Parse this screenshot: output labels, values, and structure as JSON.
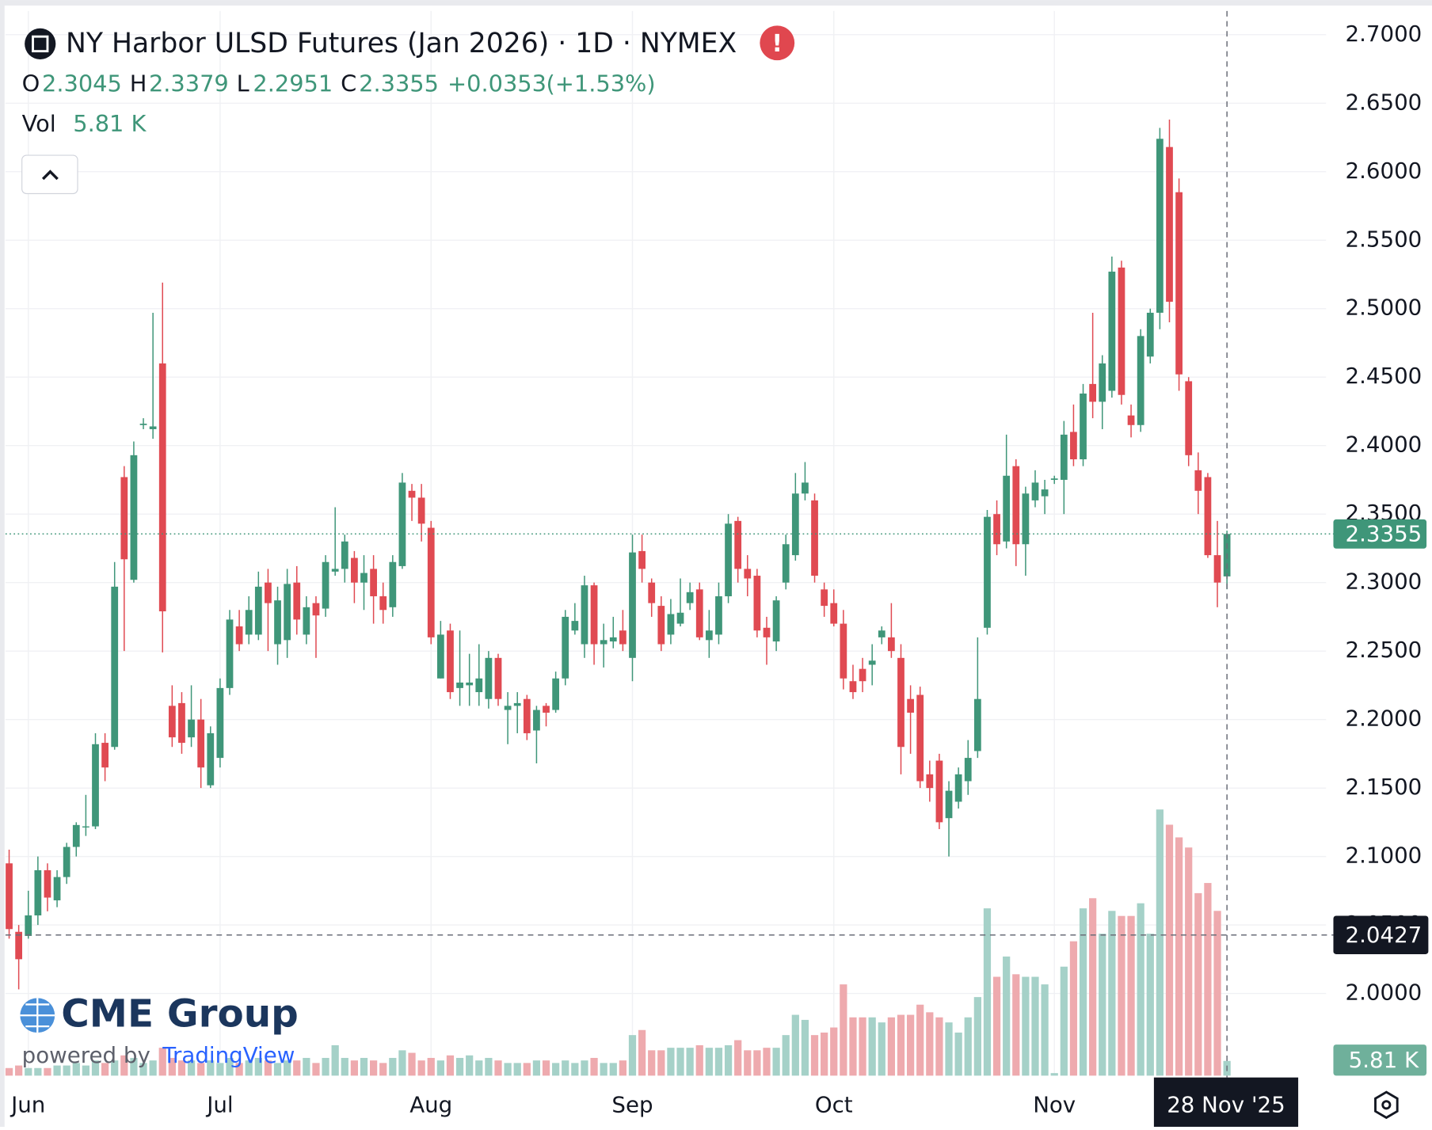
{
  "header": {
    "title": "NY Harbor ULSD Futures (Jan 2026) · 1D · NYMEX",
    "ohlc_labels": [
      "O",
      "H",
      "L",
      "C"
    ],
    "change": "+0.0353",
    "change_pct": "(+1.53%)",
    "vol_label": "Vol",
    "vol_value": "5.81 K"
  },
  "branding": {
    "logo": "CME Group",
    "powered": "powered by",
    "platform": "TradingView"
  },
  "chart_data": {
    "type": "candlestick",
    "open": [
      2.095,
      2.045,
      2.042,
      2.057,
      2.09,
      2.068,
      2.085,
      2.107,
      2.122,
      2.122,
      2.183,
      2.18,
      2.377,
      2.302,
      2.415,
      2.412,
      2.46,
      2.21,
      2.212,
      2.187,
      2.2,
      2.152,
      2.172,
      2.223,
      2.268,
      2.262,
      2.262,
      2.3,
      2.255,
      2.258,
      2.3,
      2.262,
      2.285,
      2.281,
      2.308,
      2.31,
      2.318,
      2.3,
      2.31,
      2.29,
      2.282,
      2.312,
      2.367,
      2.362,
      2.34,
      2.23,
      2.265,
      2.223,
      2.225,
      2.22,
      2.215,
      2.245,
      2.207,
      2.21,
      2.215,
      2.192,
      2.21,
      2.207,
      2.23,
      2.265,
      2.255,
      2.298,
      2.255,
      2.257,
      2.265,
      2.245,
      2.323,
      2.3,
      2.283,
      2.262,
      2.27,
      2.285,
      2.295,
      2.258,
      2.262,
      2.29,
      2.345,
      2.31,
      2.305,
      2.267,
      2.257,
      2.3,
      2.32,
      2.365,
      2.36,
      2.295,
      2.285,
      2.27,
      2.228,
      2.237,
      2.24,
      2.26,
      2.26,
      2.245,
      2.215,
      2.218,
      2.16,
      2.17,
      2.128,
      2.14,
      2.155,
      2.177,
      2.267,
      2.35,
      2.33,
      2.385,
      2.328,
      2.36,
      2.363,
      2.375,
      2.375,
      2.41,
      2.39,
      2.445,
      2.432,
      2.44,
      2.53,
      2.422,
      2.415,
      2.465,
      2.497,
      2.618,
      2.585,
      2.447,
      2.382,
      2.377,
      2.32,
      2.3045
    ],
    "high": [
      2.105,
      2.05,
      2.075,
      2.1,
      2.095,
      2.09,
      2.11,
      2.125,
      2.145,
      2.19,
      2.19,
      2.315,
      2.385,
      2.403,
      2.42,
      2.497,
      2.519,
      2.225,
      2.22,
      2.225,
      2.215,
      2.195,
      2.23,
      2.28,
      2.28,
      2.29,
      2.308,
      2.31,
      2.297,
      2.31,
      2.312,
      2.29,
      2.29,
      2.32,
      2.355,
      2.335,
      2.323,
      2.32,
      2.32,
      2.3,
      2.32,
      2.38,
      2.372,
      2.372,
      2.345,
      2.272,
      2.27,
      2.265,
      2.248,
      2.255,
      2.25,
      2.248,
      2.22,
      2.22,
      2.218,
      2.21,
      2.212,
      2.235,
      2.28,
      2.285,
      2.305,
      2.3,
      2.27,
      2.275,
      2.28,
      2.335,
      2.335,
      2.303,
      2.29,
      2.288,
      2.303,
      2.3,
      2.3,
      2.28,
      2.3,
      2.35,
      2.348,
      2.32,
      2.31,
      2.275,
      2.29,
      2.335,
      2.38,
      2.388,
      2.365,
      2.3,
      2.295,
      2.28,
      2.24,
      2.245,
      2.255,
      2.268,
      2.285,
      2.255,
      2.225,
      2.224,
      2.17,
      2.175,
      2.155,
      2.165,
      2.185,
      2.26,
      2.353,
      2.36,
      2.408,
      2.39,
      2.37,
      2.382,
      2.375,
      2.378,
      2.418,
      2.43,
      2.445,
      2.497,
      2.466,
      2.538,
      2.535,
      2.43,
      2.485,
      2.5,
      2.632,
      2.638,
      2.595,
      2.45,
      2.395,
      2.38,
      2.345,
      2.3379
    ],
    "low": [
      2.04,
      2.003,
      2.04,
      2.05,
      2.06,
      2.063,
      2.08,
      2.1,
      2.115,
      2.12,
      2.155,
      2.178,
      2.25,
      2.3,
      2.412,
      2.405,
      2.249,
      2.18,
      2.175,
      2.18,
      2.15,
      2.15,
      2.165,
      2.218,
      2.25,
      2.255,
      2.258,
      2.25,
      2.24,
      2.245,
      2.262,
      2.255,
      2.245,
      2.275,
      2.305,
      2.3,
      2.285,
      2.28,
      2.27,
      2.27,
      2.275,
      2.31,
      2.345,
      2.33,
      2.255,
      2.23,
      2.215,
      2.21,
      2.21,
      2.21,
      2.208,
      2.21,
      2.182,
      2.19,
      2.185,
      2.168,
      2.195,
      2.205,
      2.225,
      2.262,
      2.245,
      2.24,
      2.238,
      2.252,
      2.25,
      2.228,
      2.3,
      2.275,
      2.25,
      2.255,
      2.268,
      2.28,
      2.258,
      2.245,
      2.255,
      2.285,
      2.3,
      2.29,
      2.26,
      2.24,
      2.25,
      2.295,
      2.316,
      2.36,
      2.3,
      2.275,
      2.268,
      2.222,
      2.215,
      2.22,
      2.225,
      2.255,
      2.245,
      2.16,
      2.175,
      2.15,
      2.14,
      2.12,
      2.1,
      2.135,
      2.145,
      2.172,
      2.262,
      2.32,
      2.325,
      2.312,
      2.305,
      2.355,
      2.35,
      2.372,
      2.35,
      2.385,
      2.385,
      2.42,
      2.412,
      2.435,
      2.43,
      2.406,
      2.41,
      2.46,
      2.485,
      2.49,
      2.44,
      2.385,
      2.35,
      2.318,
      2.282,
      2.2951
    ],
    "close": [
      2.047,
      2.025,
      2.057,
      2.09,
      2.07,
      2.085,
      2.107,
      2.123,
      2.122,
      2.182,
      2.165,
      2.297,
      2.317,
      2.393,
      2.416,
      2.414,
      2.279,
      2.187,
      2.183,
      2.2,
      2.165,
      2.19,
      2.223,
      2.273,
      2.255,
      2.28,
      2.297,
      2.285,
      2.287,
      2.299,
      2.273,
      2.282,
      2.276,
      2.315,
      2.31,
      2.33,
      2.3,
      2.307,
      2.29,
      2.28,
      2.315,
      2.373,
      2.362,
      2.343,
      2.26,
      2.262,
      2.22,
      2.227,
      2.227,
      2.23,
      2.245,
      2.215,
      2.21,
      2.212,
      2.19,
      2.207,
      2.205,
      2.23,
      2.275,
      2.272,
      2.298,
      2.255,
      2.258,
      2.26,
      2.255,
      2.322,
      2.31,
      2.285,
      2.255,
      2.277,
      2.278,
      2.293,
      2.26,
      2.265,
      2.29,
      2.343,
      2.31,
      2.303,
      2.265,
      2.26,
      2.287,
      2.328,
      2.365,
      2.373,
      2.305,
      2.283,
      2.27,
      2.23,
      2.22,
      2.228,
      2.243,
      2.265,
      2.25,
      2.18,
      2.205,
      2.155,
      2.15,
      2.125,
      2.148,
      2.16,
      2.172,
      2.215,
      2.348,
      2.328,
      2.378,
      2.328,
      2.365,
      2.373,
      2.368,
      2.376,
      2.408,
      2.39,
      2.438,
      2.432,
      2.46,
      2.527,
      2.437,
      2.415,
      2.48,
      2.497,
      2.624,
      2.505,
      2.452,
      2.393,
      2.367,
      2.32,
      2.3,
      2.3355
    ],
    "volume": [
      3,
      4,
      3,
      3,
      3,
      4,
      4,
      5,
      4,
      6,
      5,
      6,
      8,
      7,
      5,
      6,
      11,
      7,
      6,
      6,
      5,
      6,
      5,
      7,
      5,
      6,
      7,
      6,
      5,
      6,
      6,
      7,
      5,
      7,
      12,
      7,
      6,
      7,
      6,
      5,
      7,
      10,
      9,
      6,
      7,
      6,
      8,
      7,
      8,
      6,
      7,
      6,
      5,
      5,
      5,
      6,
      6,
      5,
      6,
      5,
      6,
      7,
      5,
      5,
      6,
      16,
      18,
      10,
      10,
      11,
      11,
      11,
      12,
      11,
      11,
      12,
      14,
      10,
      10,
      11,
      11,
      16,
      24,
      22,
      16,
      17,
      19,
      36,
      23,
      23,
      23,
      21,
      23,
      24,
      24,
      28,
      25,
      23,
      21,
      17,
      23,
      31,
      66,
      39,
      47,
      40,
      39,
      39,
      36,
      1,
      43,
      53,
      66,
      70,
      56,
      65,
      63,
      63,
      68,
      56,
      105,
      99,
      94,
      90,
      72,
      76,
      65,
      5.81
    ],
    "up_color": "#3f9679",
    "down_color": "#e04a52",
    "up_volume_color": "#a5d1c8",
    "down_volume_color": "#eeaaae",
    "ylim": [
      1.94,
      2.7173
    ],
    "volume_ylim": [
      0,
      420
    ],
    "yticks": [
      {
        "value": 2.0,
        "label": "2.0000"
      },
      {
        "value": 2.05,
        "label": "2.0500"
      },
      {
        "value": 2.1,
        "label": "2.1000"
      },
      {
        "value": 2.15,
        "label": "2.1500"
      },
      {
        "value": 2.2,
        "label": "2.2000"
      },
      {
        "value": 2.25,
        "label": "2.2500"
      },
      {
        "value": 2.3,
        "label": "2.3000"
      },
      {
        "value": 2.35,
        "label": "2.3500"
      },
      {
        "value": 2.4,
        "label": "2.4000"
      },
      {
        "value": 2.45,
        "label": "2.4500"
      },
      {
        "value": 2.5,
        "label": "2.5000"
      },
      {
        "value": 2.55,
        "label": "2.5500"
      },
      {
        "value": 2.6,
        "label": "2.6000"
      },
      {
        "value": 2.65,
        "label": "2.6500"
      },
      {
        "value": 2.7,
        "label": "2.7000"
      }
    ],
    "xticks": [
      {
        "value": 2,
        "label": "Jun"
      },
      {
        "value": 22,
        "label": "Jul"
      },
      {
        "value": 44,
        "label": "Aug"
      },
      {
        "value": 65,
        "label": "Sep"
      },
      {
        "value": 86,
        "label": "Oct"
      },
      {
        "value": 109,
        "label": "Nov"
      }
    ],
    "grid": true,
    "crosshair_price": 2.0427,
    "crosshair_index": 127,
    "cursor_date": "28 Nov '25"
  }
}
